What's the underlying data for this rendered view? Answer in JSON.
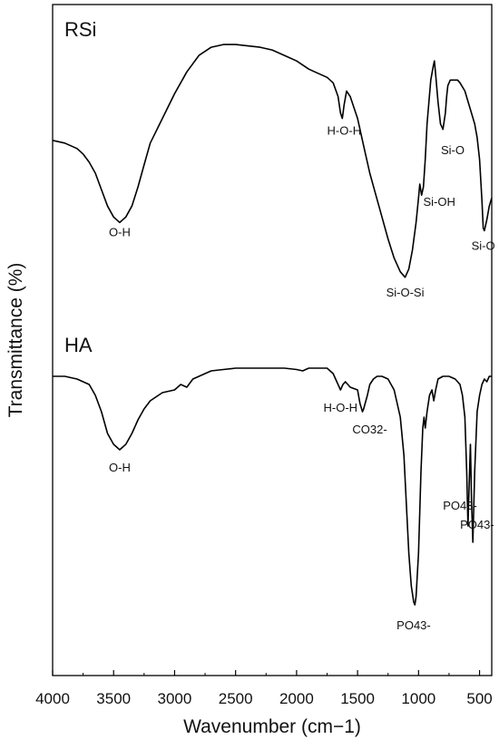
{
  "chart_data": {
    "type": "line",
    "xlabel": "Wavenumber (cm−1)",
    "ylabel": "Transmittance (%)",
    "xlim": [
      4000,
      400
    ],
    "x_reversed": true,
    "x_ticks": [
      4000,
      3500,
      3000,
      2500,
      2000,
      1500,
      1000,
      500
    ],
    "y_ticks_shown": false,
    "grid": false,
    "legend": "none",
    "line_color": "#000000",
    "panels": [
      {
        "label": "RSi",
        "series": [
          {
            "x": [
              4000,
              3900,
              3850,
              3800,
              3750,
              3700,
              3650,
              3600,
              3550,
              3500,
              3450,
              3400,
              3350,
              3300,
              3250,
              3200,
              3100,
              3000,
              2900,
              2800,
              2700,
              2600,
              2500,
              2400,
              2300,
              2200,
              2100,
              2000,
              1900,
              1850,
              1800,
              1750,
              1700,
              1660,
              1640,
              1625,
              1610,
              1590,
              1560,
              1500,
              1450,
              1400,
              1350,
              1300,
              1250,
              1200,
              1150,
              1110,
              1080,
              1050,
              1020,
              1000,
              990,
              975,
              960,
              945,
              930,
              900,
              880,
              870,
              860,
              840,
              820,
              800,
              780,
              770,
              760,
              740,
              720,
              700,
              680,
              660,
              620,
              580,
              540,
              520,
              500,
              480,
              470,
              460,
              440,
              420,
              400
            ],
            "y": [
              62,
              61,
              60,
              59,
              57,
              54,
              50,
              44,
              38,
              34,
              32,
              34,
              38,
              45,
              53,
              61,
              70,
              79,
              87,
              93,
              96,
              97,
              97,
              96.5,
              96,
              95,
              93,
              91,
              88,
              87,
              86,
              85,
              83,
              78,
              72,
              70,
              75,
              80,
              78,
              70,
              60,
              50,
              42,
              34,
              26,
              19,
              14,
              12,
              15,
              22,
              32,
              41,
              46,
              42,
              45,
              55,
              68,
              84,
              89,
              91,
              86,
              76,
              68,
              66,
              72,
              78,
              82,
              84,
              84,
              84,
              84,
              83,
              80,
              74,
              68,
              63,
              55,
              40,
              30,
              29,
              33,
              38,
              41
            ]
          }
        ],
        "annotations": [
          {
            "text": "O-H",
            "x": 3450,
            "y": 27
          },
          {
            "text": "H-O-H",
            "x": 1610,
            "y": 64
          },
          {
            "text": "Si-O-Si",
            "x": 1110,
            "y": 5
          },
          {
            "text": "Si-OH",
            "x": 830,
            "y": 38
          },
          {
            "text": "Si-O",
            "x": 720,
            "y": 57
          },
          {
            "text": "Si-O",
            "x": 470,
            "y": 22
          }
        ]
      },
      {
        "label": "HA",
        "series": [
          {
            "x": [
              4000,
              3900,
              3800,
              3700,
              3650,
              3600,
              3550,
              3500,
              3450,
              3400,
              3350,
              3300,
              3250,
              3200,
              3100,
              3000,
              2950,
              2900,
              2850,
              2800,
              2700,
              2600,
              2500,
              2400,
              2300,
              2200,
              2100,
              2000,
              1950,
              1900,
              1850,
              1800,
              1750,
              1700,
              1660,
              1640,
              1620,
              1600,
              1560,
              1500,
              1480,
              1460,
              1450,
              1420,
              1400,
              1370,
              1340,
              1300,
              1250,
              1200,
              1150,
              1120,
              1100,
              1080,
              1060,
              1040,
              1030,
              1020,
              1000,
              980,
              965,
              955,
              945,
              930,
              910,
              890,
              875,
              860,
              840,
              800,
              750,
              700,
              660,
              640,
              620,
              605,
              595,
              585,
              575,
              565,
              555,
              540,
              520,
              500,
              480,
              460,
              440,
              420,
              400
            ],
            "y": [
              95,
              95,
              94,
              92,
              88,
              82,
              74,
              70,
              68,
              70,
              74,
              79,
              83,
              86,
              89,
              90,
              92,
              91,
              94,
              95,
              97,
              97.5,
              98,
              98,
              98,
              98,
              98,
              97.5,
              97,
              98,
              98,
              98,
              98,
              96,
              92,
              90,
              92,
              93,
              91,
              90,
              85,
              82,
              83,
              88,
              92,
              94,
              95,
              95,
              94,
              90,
              80,
              66,
              48,
              30,
              18,
              12,
              11,
              14,
              30,
              60,
              76,
              80,
              76,
              82,
              88,
              90,
              86,
              90,
              94,
              95,
              95,
              94,
              92,
              88,
              80,
              60,
              40,
              55,
              70,
              48,
              34,
              60,
              82,
              88,
              92,
              94,
              93,
              95,
              95
            ]
          }
        ],
        "annotations": [
          {
            "text": "O-H",
            "x": 3450,
            "y": 60
          },
          {
            "text": "H-O-H",
            "x": 1640,
            "y": 82
          },
          {
            "text": "CO32-",
            "x": 1400,
            "y": 74
          },
          {
            "text": "PO43-",
            "x": 1040,
            "y": 2
          },
          {
            "text": "PO43-",
            "x": 660,
            "y": 46
          },
          {
            "text": "PO43-",
            "x": 520,
            "y": 39
          }
        ]
      }
    ]
  }
}
